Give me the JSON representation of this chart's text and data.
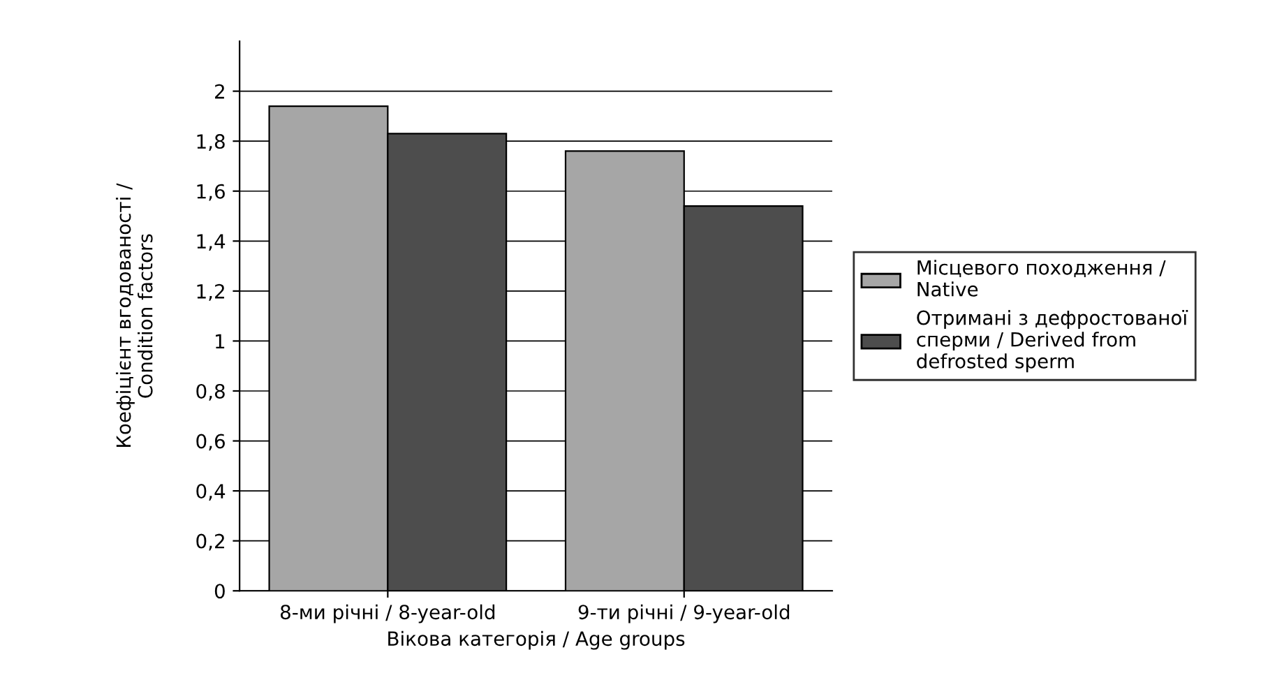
{
  "chart_data": {
    "type": "bar",
    "categories": [
      "8-ми річні / 8-year-old",
      "9-ти річні / 9-year-old"
    ],
    "series": [
      {
        "name": "Місцевого походження / Native",
        "color": "#a6a6a6",
        "values": [
          1.94,
          1.76
        ]
      },
      {
        "name": "Отримані з дефростованої сперми / Derived from defrosted sperm",
        "color": "#4d4d4d",
        "values": [
          1.83,
          1.54
        ]
      }
    ],
    "xlabel": "Вікова категорія / Age groups",
    "ylabel": "Коефіцієнт вгодованості /\nCondition factors",
    "ylim": [
      0,
      2.2
    ],
    "yticks": [
      {
        "value": 0,
        "label": "0"
      },
      {
        "value": 0.2,
        "label": "0,2"
      },
      {
        "value": 0.4,
        "label": "0,4"
      },
      {
        "value": 0.6,
        "label": "0,6"
      },
      {
        "value": 0.8,
        "label": "0,8"
      },
      {
        "value": 1,
        "label": "1"
      },
      {
        "value": 1.2,
        "label": "1,2"
      },
      {
        "value": 1.4,
        "label": "1,4"
      },
      {
        "value": 1.6,
        "label": "1,6"
      },
      {
        "value": 1.8,
        "label": "1,8"
      },
      {
        "value": 2,
        "label": "2"
      }
    ],
    "grid": "y",
    "legend": "right"
  }
}
